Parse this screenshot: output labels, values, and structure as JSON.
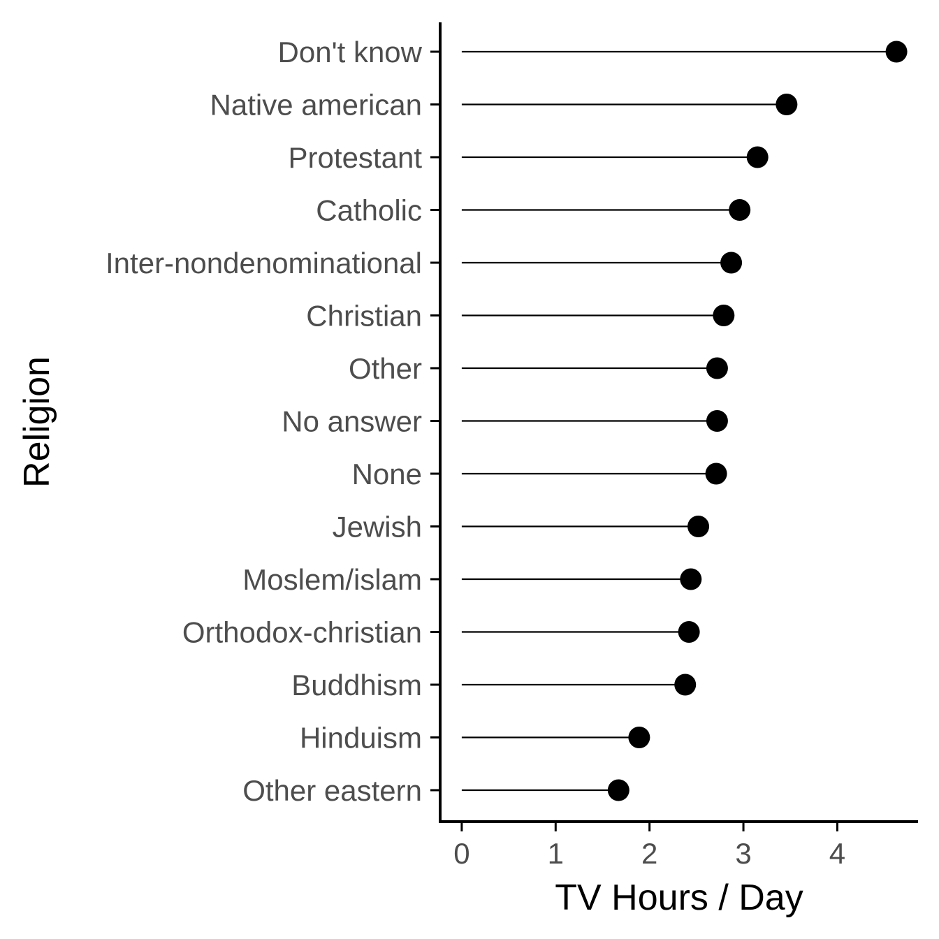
{
  "chart_data": {
    "type": "scatter",
    "subtype": "lollipop",
    "title": "",
    "xlabel": "TV Hours / Day",
    "ylabel": "Religion",
    "xlim": [
      -0.23,
      4.86
    ],
    "xticks": [
      0,
      1,
      2,
      3,
      4
    ],
    "grid": false,
    "legend": "none",
    "categories": [
      "Don't know",
      "Native american",
      "Protestant",
      "Catholic",
      "Inter-nondenominational",
      "Christian",
      "Other",
      "No answer",
      "None",
      "Jewish",
      "Moslem/islam",
      "Orthodox-christian",
      "Buddhism",
      "Hinduism",
      "Other eastern"
    ],
    "values": [
      4.63,
      3.46,
      3.15,
      2.96,
      2.87,
      2.79,
      2.72,
      2.72,
      2.71,
      2.52,
      2.44,
      2.42,
      2.38,
      1.89,
      1.67
    ],
    "colors": {
      "point": "#000000",
      "stem": "#000000",
      "axis": "#000000",
      "tick_text": "#4d4d4d"
    }
  }
}
